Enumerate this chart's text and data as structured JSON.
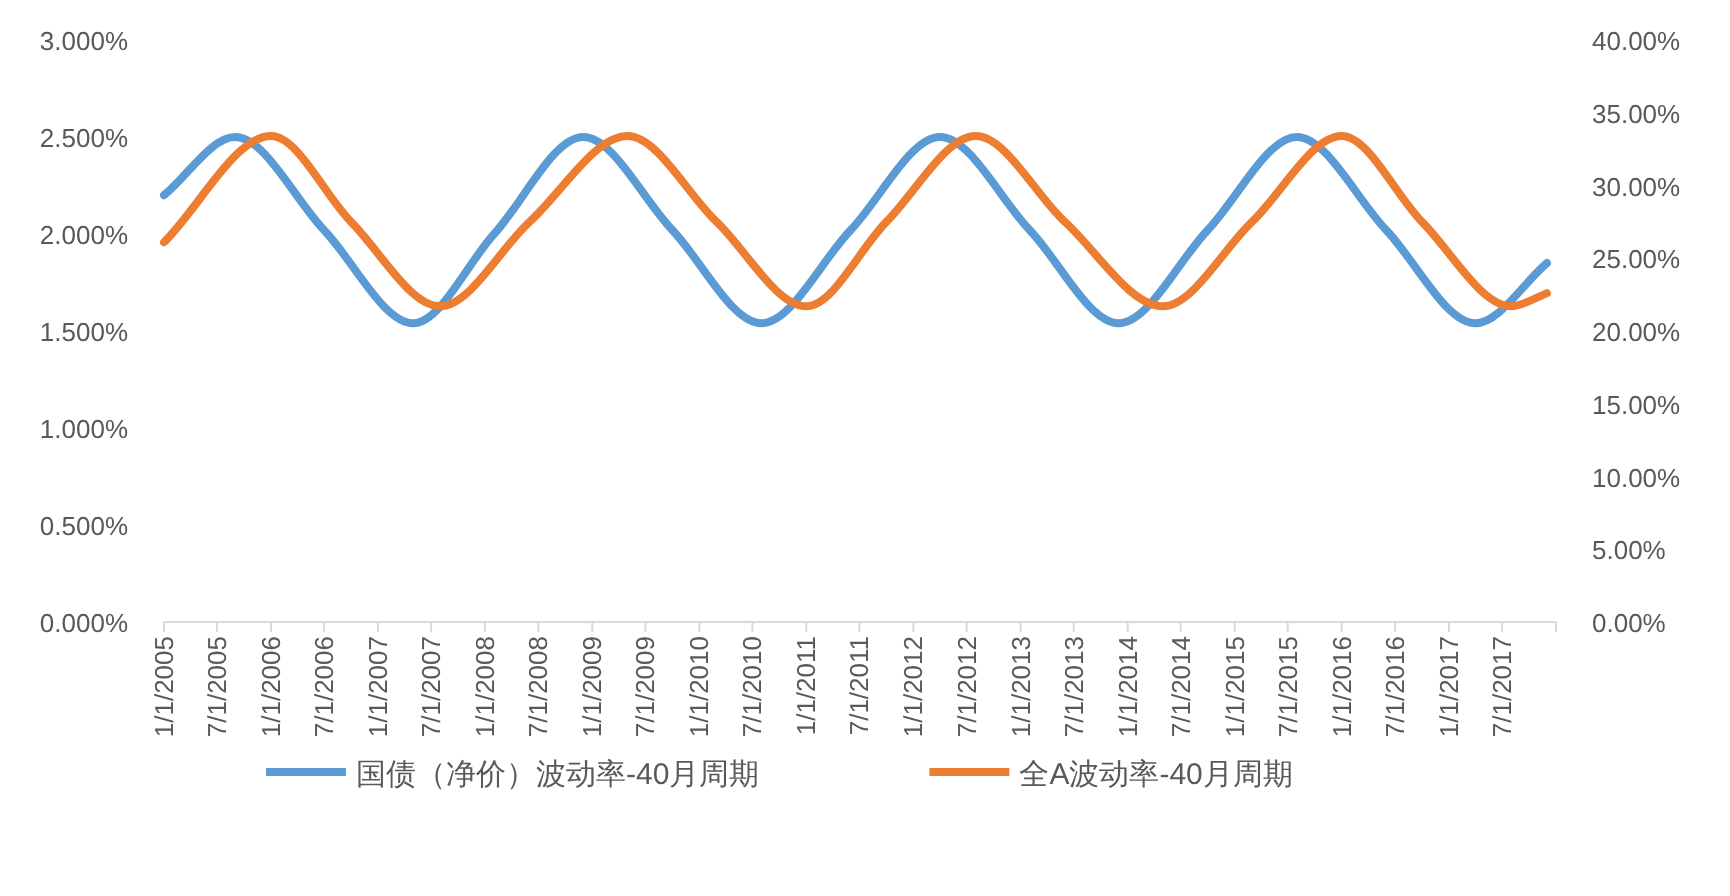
{
  "chart_data": {
    "type": "line",
    "legend": "bottom",
    "grid": false,
    "marker": "none",
    "line_style": "solid",
    "xlim": [
      "2005-01-01",
      "2018-01-01"
    ],
    "xticks": [
      {
        "value": "2005-01-01",
        "label": "1/1/2005"
      },
      {
        "value": "2005-07-01",
        "label": "7/1/2005"
      },
      {
        "value": "2006-01-01",
        "label": "1/1/2006"
      },
      {
        "value": "2006-07-01",
        "label": "7/1/2006"
      },
      {
        "value": "2007-01-01",
        "label": "1/1/2007"
      },
      {
        "value": "2007-07-01",
        "label": "7/1/2007"
      },
      {
        "value": "2008-01-01",
        "label": "1/1/2008"
      },
      {
        "value": "2008-07-01",
        "label": "7/1/2008"
      },
      {
        "value": "2009-01-01",
        "label": "1/1/2009"
      },
      {
        "value": "2009-07-01",
        "label": "7/1/2009"
      },
      {
        "value": "2010-01-01",
        "label": "1/1/2010"
      },
      {
        "value": "2010-07-01",
        "label": "7/1/2010"
      },
      {
        "value": "2011-01-01",
        "label": "1/1/2011"
      },
      {
        "value": "2011-07-01",
        "label": "7/1/2011"
      },
      {
        "value": "2012-01-01",
        "label": "1/1/2012"
      },
      {
        "value": "2012-07-01",
        "label": "7/1/2012"
      },
      {
        "value": "2013-01-01",
        "label": "1/1/2013"
      },
      {
        "value": "2013-07-01",
        "label": "7/1/2013"
      },
      {
        "value": "2014-01-01",
        "label": "1/1/2014"
      },
      {
        "value": "2014-07-01",
        "label": "7/1/2014"
      },
      {
        "value": "2015-01-01",
        "label": "1/1/2015"
      },
      {
        "value": "2015-07-01",
        "label": "7/1/2015"
      },
      {
        "value": "2016-01-01",
        "label": "1/1/2016"
      },
      {
        "value": "2016-07-01",
        "label": "7/1/2016"
      },
      {
        "value": "2017-01-01",
        "label": "1/1/2017"
      },
      {
        "value": "2017-07-01",
        "label": "7/1/2017"
      },
      {
        "value": "2018-01-01",
        "label": null
      }
    ],
    "ylim": [
      0,
      3
    ],
    "yticks": [
      {
        "value": 0,
        "label": "0.000%"
      },
      {
        "value": 0.5,
        "label": "0.500%"
      },
      {
        "value": 1,
        "label": "1.000%"
      },
      {
        "value": 1.5,
        "label": "1.500%"
      },
      {
        "value": 2,
        "label": "2.000%"
      },
      {
        "value": 2.5,
        "label": "2.500%"
      },
      {
        "value": 3,
        "label": "3.000%"
      }
    ],
    "y2lim": [
      0,
      40
    ],
    "y2ticks": [
      {
        "value": 0,
        "label": "0.00%"
      },
      {
        "value": 5,
        "label": "5.00%"
      },
      {
        "value": 10,
        "label": "10.00%"
      },
      {
        "value": 15,
        "label": "15.00%"
      },
      {
        "value": 20,
        "label": "20.00%"
      },
      {
        "value": 25,
        "label": "25.00%"
      },
      {
        "value": 30,
        "label": "30.00%"
      },
      {
        "value": 35,
        "label": "35.00%"
      },
      {
        "value": 40,
        "label": "40.00%"
      }
    ],
    "series": [
      {
        "name": "国债（净价）波动率-40月周期",
        "color": "#5b9bd5",
        "x": [
          "2005-01",
          "2005-09",
          "2006-07",
          "2007-05",
          "2008-02",
          "2008-12",
          "2009-10",
          "2010-08",
          "2011-06",
          "2012-04",
          "2013-02",
          "2013-12",
          "2014-10",
          "2015-08",
          "2016-06",
          "2017-04",
          "2017-12"
        ],
        "values": [
          2.2,
          2.5,
          2.02,
          1.54,
          2.0,
          2.5,
          2.02,
          1.54,
          2.02,
          2.5,
          2.02,
          1.54,
          2.02,
          2.5,
          2.02,
          1.54,
          1.85
        ]
      },
      {
        "name": "全A波动率-40月周期",
        "color": "#ed7d31",
        "axis": "y2",
        "x": [
          "2005-01",
          "2006-01",
          "2006-10",
          "2007-08",
          "2008-06",
          "2009-05",
          "2010-03",
          "2011-01",
          "2011-10",
          "2012-08",
          "2013-06",
          "2014-05",
          "2015-03",
          "2016-01",
          "2016-10",
          "2017-08",
          "2017-12"
        ],
        "values": [
          26.1,
          33.4,
          27.5,
          21.7,
          27.5,
          33.4,
          27.5,
          21.7,
          27.5,
          33.4,
          27.5,
          21.7,
          27.5,
          33.4,
          27.5,
          21.7,
          22.6
        ]
      }
    ]
  }
}
